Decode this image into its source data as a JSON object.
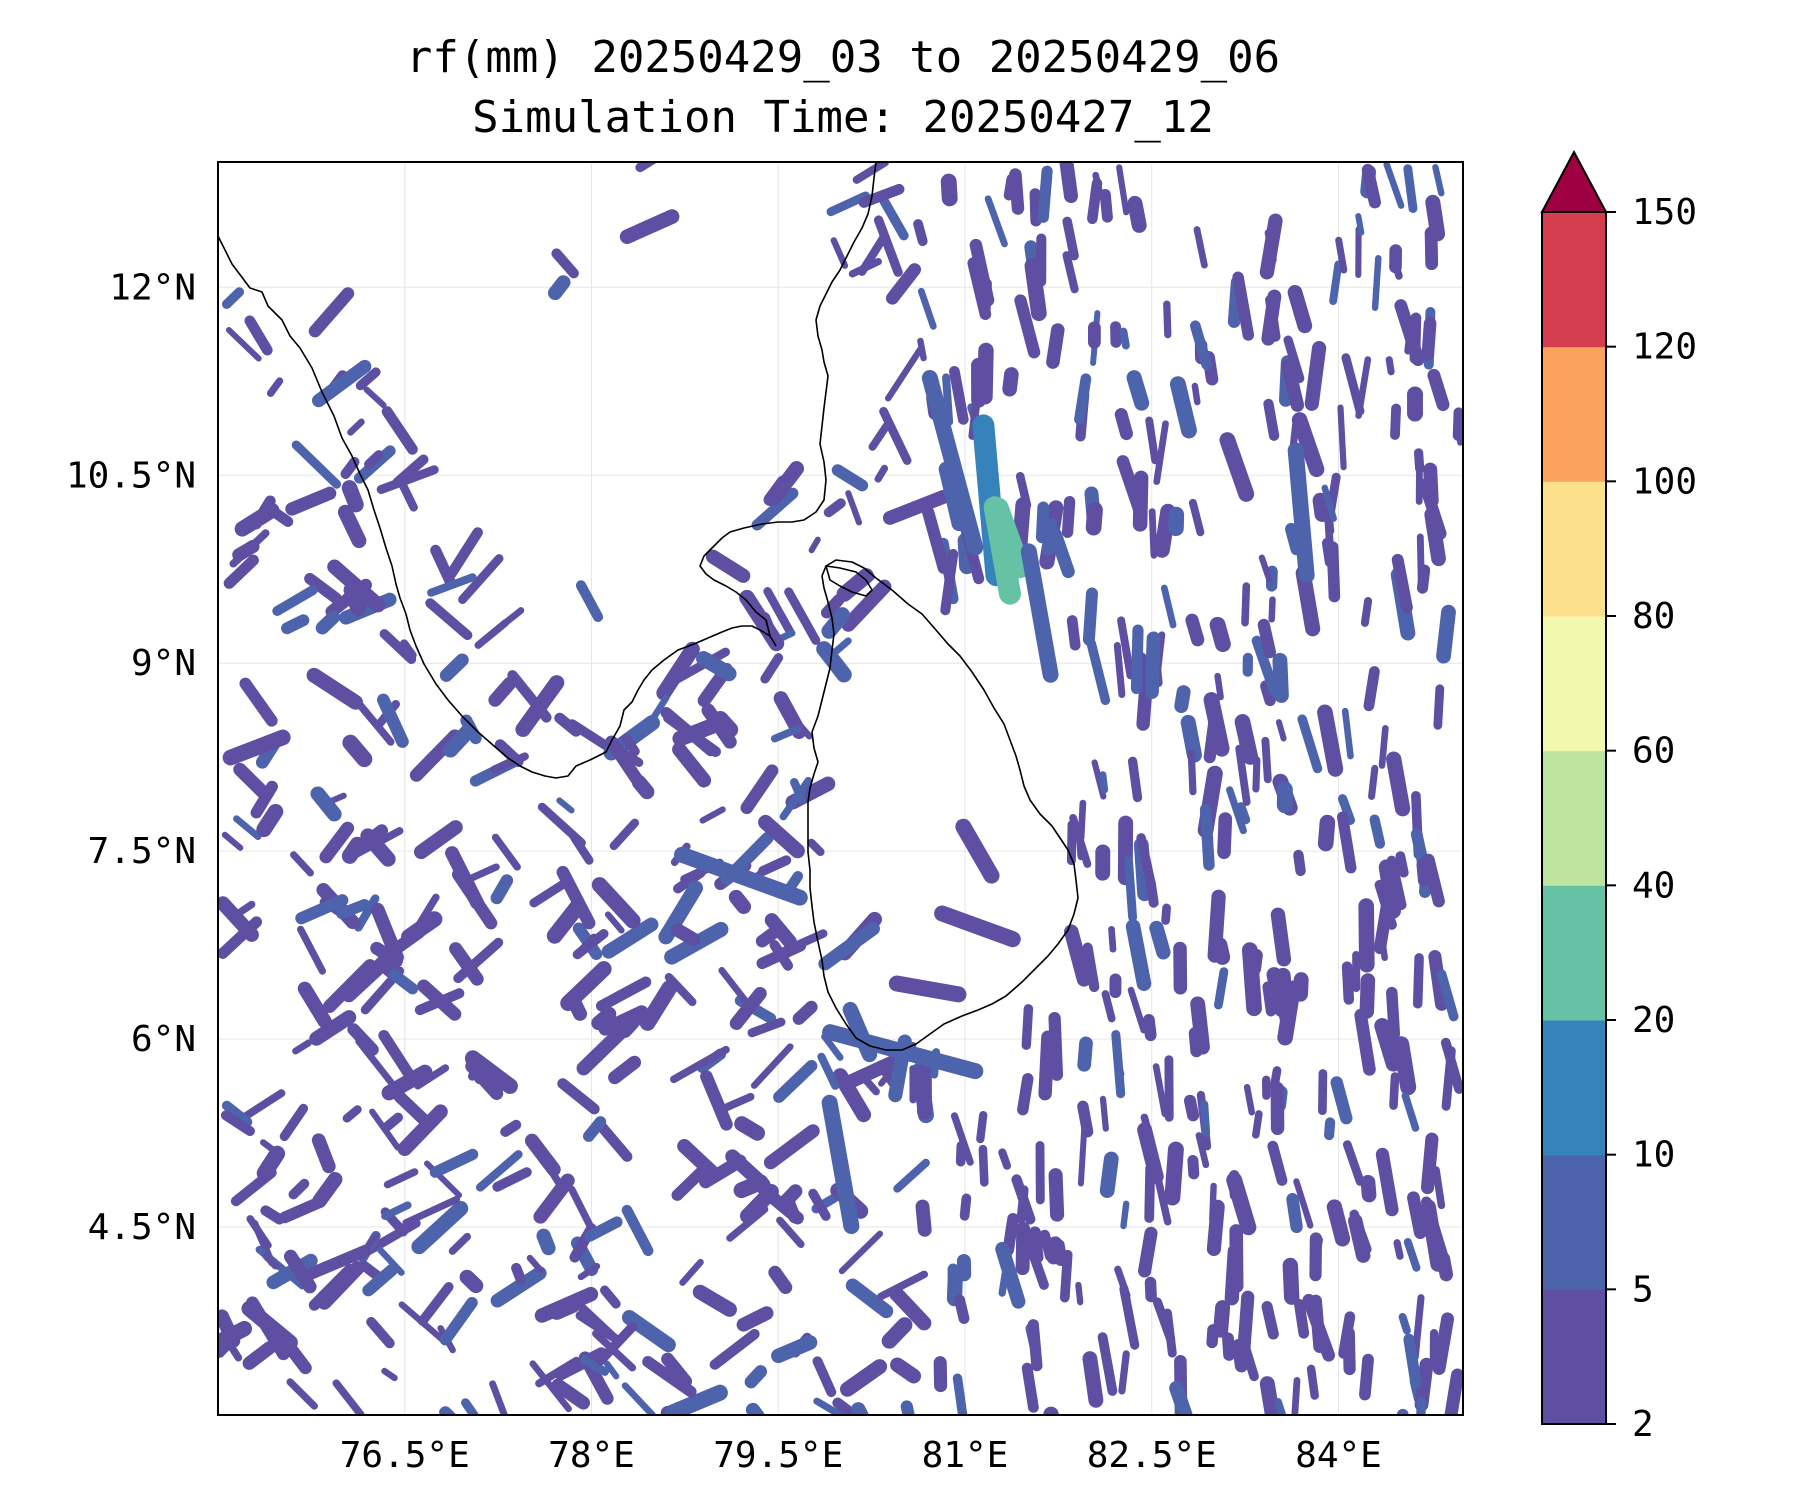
{
  "title": {
    "line1": "rf(mm) 20250429_03 to 20250429_06",
    "line2": "Simulation Time: 20250427_12"
  },
  "map_extent": {
    "lon": [
      75.0,
      85.0
    ],
    "lat": [
      3.0,
      13.0
    ]
  },
  "axes": {
    "lon_ticks": [
      76.5,
      78.0,
      79.5,
      81.0,
      82.5,
      84.0
    ],
    "lon_labels": [
      "76.5°E",
      "78°E",
      "79.5°E",
      "81°E",
      "82.5°E",
      "84°E"
    ],
    "lat_ticks": [
      12.0,
      10.5,
      9.0,
      7.5,
      6.0,
      4.5
    ],
    "lat_labels": [
      "12°N",
      "10.5°N",
      "9°N",
      "7.5°N",
      "6°N",
      "4.5°N"
    ],
    "grid": true
  },
  "colorbar": {
    "levels": [
      2,
      5,
      10,
      20,
      40,
      60,
      80,
      100,
      120,
      150
    ],
    "labels": [
      "2",
      "5",
      "10",
      "20",
      "40",
      "60",
      "80",
      "100",
      "120",
      "150"
    ],
    "colors": [
      "#5e4fa2",
      "#4d64ad",
      "#3683bb",
      "#66c2a5",
      "#bde5a0",
      "#f2f9ae",
      "#fde08b",
      "#fba25c",
      "#d53e4f"
    ],
    "extend_color": "#9e0142",
    "extend": "max"
  },
  "colors": {
    "coastline": "#000000",
    "gridline": "#e6e6e6"
  },
  "chart_data": {
    "type": "heatmap",
    "variable": "rf(mm)",
    "rain_blobs": [
      {
        "lon": 81.2,
        "lat": 10.3,
        "length": 1.2,
        "angle": 85,
        "cls": 2
      },
      {
        "lon": 81.3,
        "lat": 9.9,
        "length": 0.7,
        "angle": 80,
        "cls": 3
      },
      {
        "lon": 81.35,
        "lat": 10.0,
        "length": 0.5,
        "angle": 70,
        "cls": 3
      },
      {
        "lon": 80.9,
        "lat": 10.6,
        "length": 1.4,
        "angle": 75,
        "cls": 1
      },
      {
        "lon": 81.6,
        "lat": 9.4,
        "length": 1.0,
        "angle": 80,
        "cls": 1
      },
      {
        "lon": 83.7,
        "lat": 10.2,
        "length": 1.0,
        "angle": 85,
        "cls": 1
      },
      {
        "lon": 79.2,
        "lat": 7.3,
        "length": 1.0,
        "angle": 20,
        "cls": 1
      },
      {
        "lon": 80.5,
        "lat": 5.9,
        "length": 1.2,
        "angle": 15,
        "cls": 1
      },
      {
        "lon": 80.0,
        "lat": 5.0,
        "length": 1.0,
        "angle": 80,
        "cls": 1
      },
      {
        "lon": 81.1,
        "lat": 7.5,
        "length": 0.45,
        "angle": 60,
        "cls": 0
      },
      {
        "lon": 81.1,
        "lat": 6.9,
        "length": 0.6,
        "angle": 20,
        "cls": 0
      },
      {
        "lon": 80.7,
        "lat": 6.4,
        "length": 0.5,
        "angle": 10,
        "cls": 0
      }
    ]
  }
}
